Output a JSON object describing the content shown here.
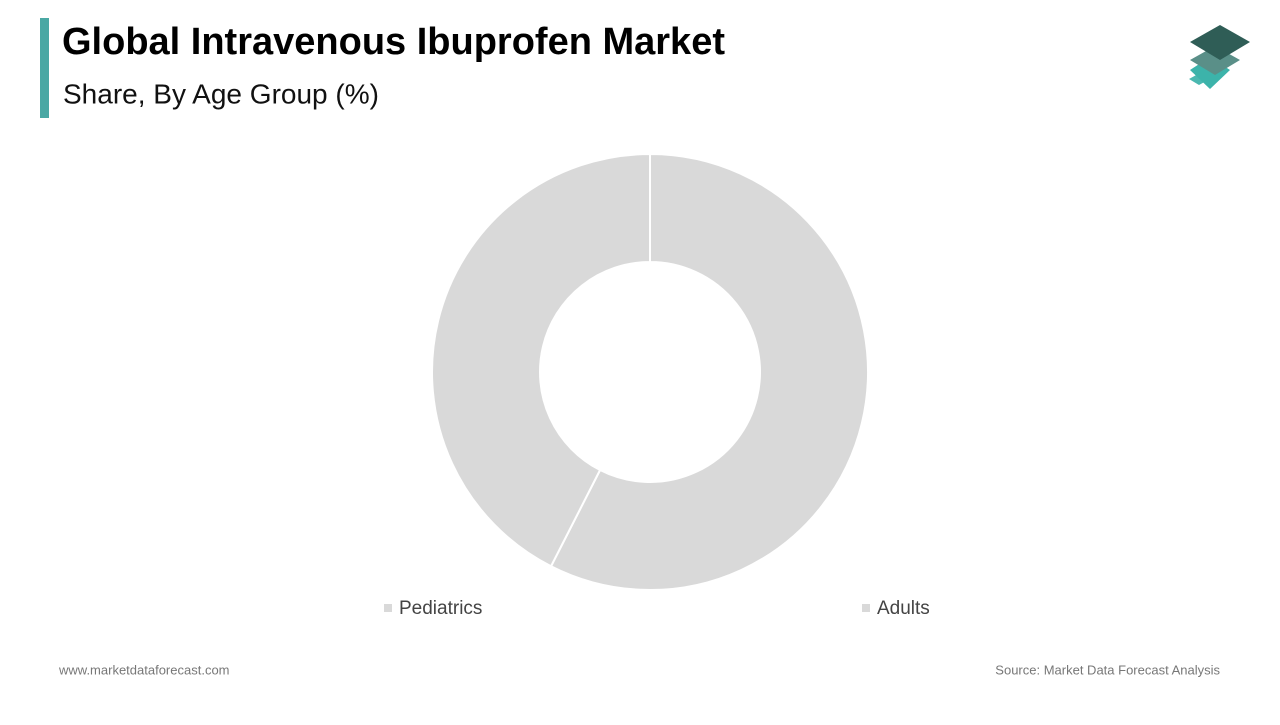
{
  "chart_data": {
    "type": "donut",
    "title": "Global Intravenous Ibuprofen Market",
    "subtitle": "Share, By Age Group (%)",
    "categories": [
      "Pediatrics",
      "Adults"
    ],
    "values": [
      57.5,
      42.5
    ],
    "colors": [
      "#d9d9d9",
      "#d9d9d9"
    ]
  },
  "footer": {
    "website": "www.marketdataforecast.com",
    "source": "Source: Market Data Forecast Analysis"
  }
}
